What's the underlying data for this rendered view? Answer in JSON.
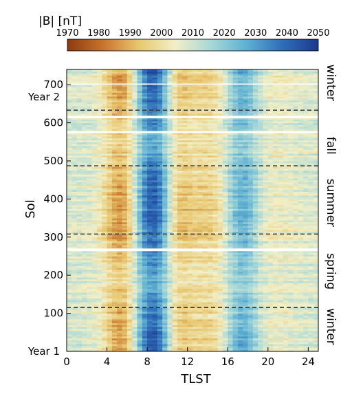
{
  "chart_data": {
    "type": "heatmap",
    "title": "|B| [nT]",
    "xlabel": "TLST",
    "ylabel": "Sol",
    "xlim": [
      0,
      25
    ],
    "ylim": [
      0,
      740
    ],
    "x_ticks": [
      0,
      4,
      8,
      12,
      16,
      20,
      24
    ],
    "y_ticks": [
      100,
      200,
      300,
      400,
      500,
      600,
      700
    ],
    "colorbar": {
      "ticks": [
        1970,
        1980,
        1990,
        2000,
        2010,
        2020,
        2030,
        2040,
        2050
      ],
      "range": [
        1970,
        2050
      ],
      "colors": [
        "#8b3a12",
        "#c8742c",
        "#e8c770",
        "#f2efc6",
        "#a8d8d8",
        "#5fb0d2",
        "#2f6db8",
        "#1b3a8c"
      ]
    },
    "season_labels": [
      {
        "text": "winter",
        "sol": 705
      },
      {
        "text": "fall",
        "sol": 540
      },
      {
        "text": "summer",
        "sol": 390
      },
      {
        "text": "spring",
        "sol": 210
      },
      {
        "text": "winter",
        "sol": 65
      }
    ],
    "season_boundaries_sol": [
      115,
      308,
      487,
      633
    ],
    "data_gaps_sol": [
      [
        263,
        270
      ],
      [
        573,
        578
      ],
      [
        612,
        618
      ],
      [
        700,
        703
      ]
    ],
    "year_labels": [
      {
        "text": "Year 2",
        "sol": 668
      },
      {
        "text": "Year 1",
        "sol": 0
      }
    ],
    "features": [
      {
        "name": "low-morning",
        "tlst_center": 5.5,
        "tlst_width": 1.3,
        "value": 1983
      },
      {
        "name": "high-mid-morning",
        "tlst_center": 8.5,
        "tlst_width": 1.4,
        "value": 2045
      },
      {
        "name": "low-late-morning",
        "tlst_center": 11.0,
        "tlst_width": 1.0,
        "value": 1990
      },
      {
        "name": "low-afternoon",
        "tlst_center": 14.0,
        "tlst_width": 1.5,
        "value": 1995
      },
      {
        "name": "high-late-afternoon",
        "tlst_center": 17.5,
        "tlst_width": 1.2,
        "value": 2030
      },
      {
        "name": "low-evening",
        "tlst_center": 20.0,
        "tlst_width": 2.0,
        "value": 2003
      }
    ]
  }
}
